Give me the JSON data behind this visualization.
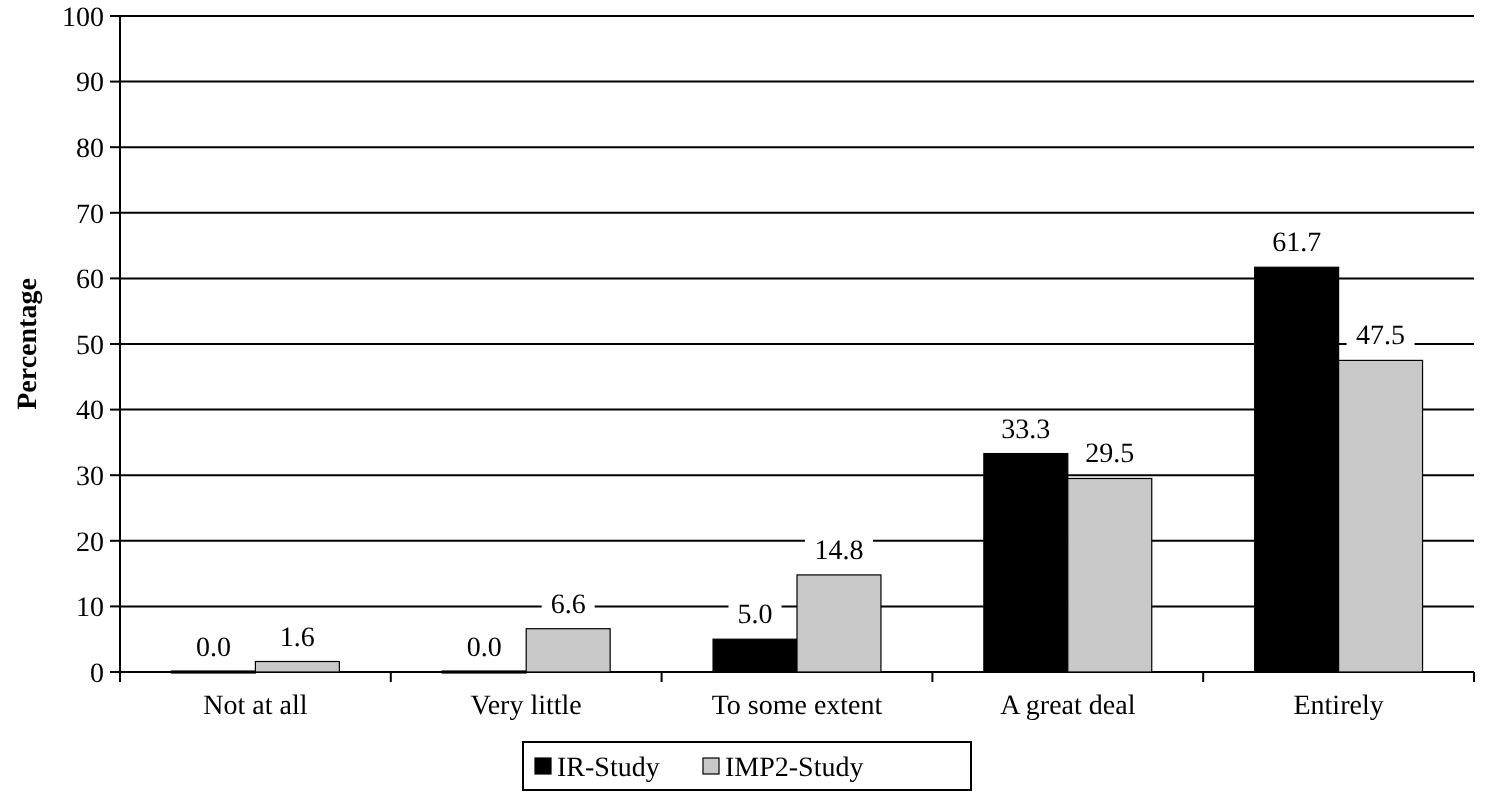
{
  "chart_data": {
    "type": "bar",
    "ylabel": "Percentage",
    "categories": [
      "Not at all",
      "Very little",
      "To some extent",
      "A great deal",
      "Entirely"
    ],
    "series": [
      {
        "name": "IR-Study",
        "color": "#000000",
        "values": [
          0,
          0,
          5,
          33.3,
          61.7
        ],
        "value_labels": [
          "0.0",
          "0.0",
          "5.0",
          "33.3",
          "61.7"
        ]
      },
      {
        "name": "IMP2-Study",
        "color": "#c8c8c8",
        "values": [
          1.6,
          6.6,
          14.8,
          29.5,
          47.5
        ],
        "value_labels": [
          "1.6",
          "6.6",
          "14.8",
          "29.5",
          "47.5"
        ]
      }
    ],
    "ylim": [
      0,
      100
    ],
    "yticks": [
      0,
      10,
      20,
      30,
      40,
      50,
      60,
      70,
      80,
      90,
      100
    ],
    "grid": "y",
    "legend": "bottom"
  }
}
